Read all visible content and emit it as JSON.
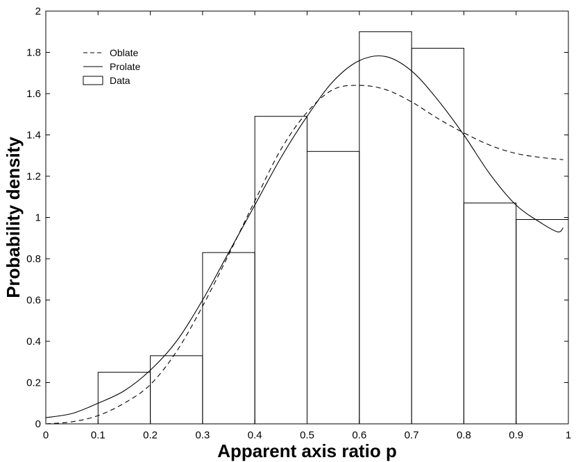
{
  "chart_data": {
    "type": "bar",
    "xlabel": "Apparent axis ratio  p",
    "ylabel": "Probability density",
    "xlim": [
      0,
      1
    ],
    "ylim": [
      0,
      2
    ],
    "xticks": [
      "0",
      "0.1",
      "0.2",
      "0.3",
      "0.4",
      "0.5",
      "0.6",
      "0.7",
      "0.8",
      "0.9",
      "1"
    ],
    "yticks": [
      "0",
      "0.2",
      "0.4",
      "0.6",
      "0.8",
      "1",
      "1.2",
      "1.4",
      "1.6",
      "1.8",
      "2"
    ],
    "grid": false,
    "legend_position": "top-left",
    "histogram": {
      "name": "Data",
      "bins": [
        {
          "from": 0.1,
          "to": 0.2,
          "value": 0.25
        },
        {
          "from": 0.2,
          "to": 0.3,
          "value": 0.33
        },
        {
          "from": 0.3,
          "to": 0.4,
          "value": 0.83
        },
        {
          "from": 0.4,
          "to": 0.5,
          "value": 1.49
        },
        {
          "from": 0.5,
          "to": 0.6,
          "value": 1.32
        },
        {
          "from": 0.6,
          "to": 0.7,
          "value": 1.9
        },
        {
          "from": 0.7,
          "to": 0.8,
          "value": 1.82
        },
        {
          "from": 0.8,
          "to": 0.9,
          "value": 1.07
        },
        {
          "from": 0.9,
          "to": 1.0,
          "value": 0.99
        }
      ]
    },
    "series": [
      {
        "name": "Oblate",
        "style": "dashed",
        "x": [
          0,
          0.05,
          0.1,
          0.15,
          0.2,
          0.25,
          0.3,
          0.35,
          0.4,
          0.45,
          0.5,
          0.55,
          0.6,
          0.65,
          0.7,
          0.75,
          0.8,
          0.85,
          0.9,
          0.95,
          0.99
        ],
        "y": [
          0,
          0.01,
          0.04,
          0.1,
          0.19,
          0.35,
          0.57,
          0.82,
          1.08,
          1.33,
          1.51,
          1.62,
          1.64,
          1.62,
          1.56,
          1.48,
          1.41,
          1.35,
          1.31,
          1.29,
          1.28
        ]
      },
      {
        "name": "Prolate",
        "style": "solid",
        "x": [
          0,
          0.05,
          0.1,
          0.15,
          0.2,
          0.25,
          0.3,
          0.35,
          0.4,
          0.45,
          0.5,
          0.55,
          0.6,
          0.65,
          0.7,
          0.75,
          0.8,
          0.85,
          0.9,
          0.95,
          0.98,
          0.99
        ],
        "y": [
          0.03,
          0.05,
          0.1,
          0.16,
          0.26,
          0.4,
          0.6,
          0.83,
          1.06,
          1.29,
          1.49,
          1.66,
          1.76,
          1.78,
          1.71,
          1.57,
          1.4,
          1.21,
          1.06,
          0.97,
          0.93,
          0.95
        ]
      }
    ],
    "legend": [
      {
        "label": "Oblate",
        "marker": "dashed"
      },
      {
        "label": "Prolate",
        "marker": "solid"
      },
      {
        "label": "Data",
        "marker": "box"
      }
    ]
  }
}
